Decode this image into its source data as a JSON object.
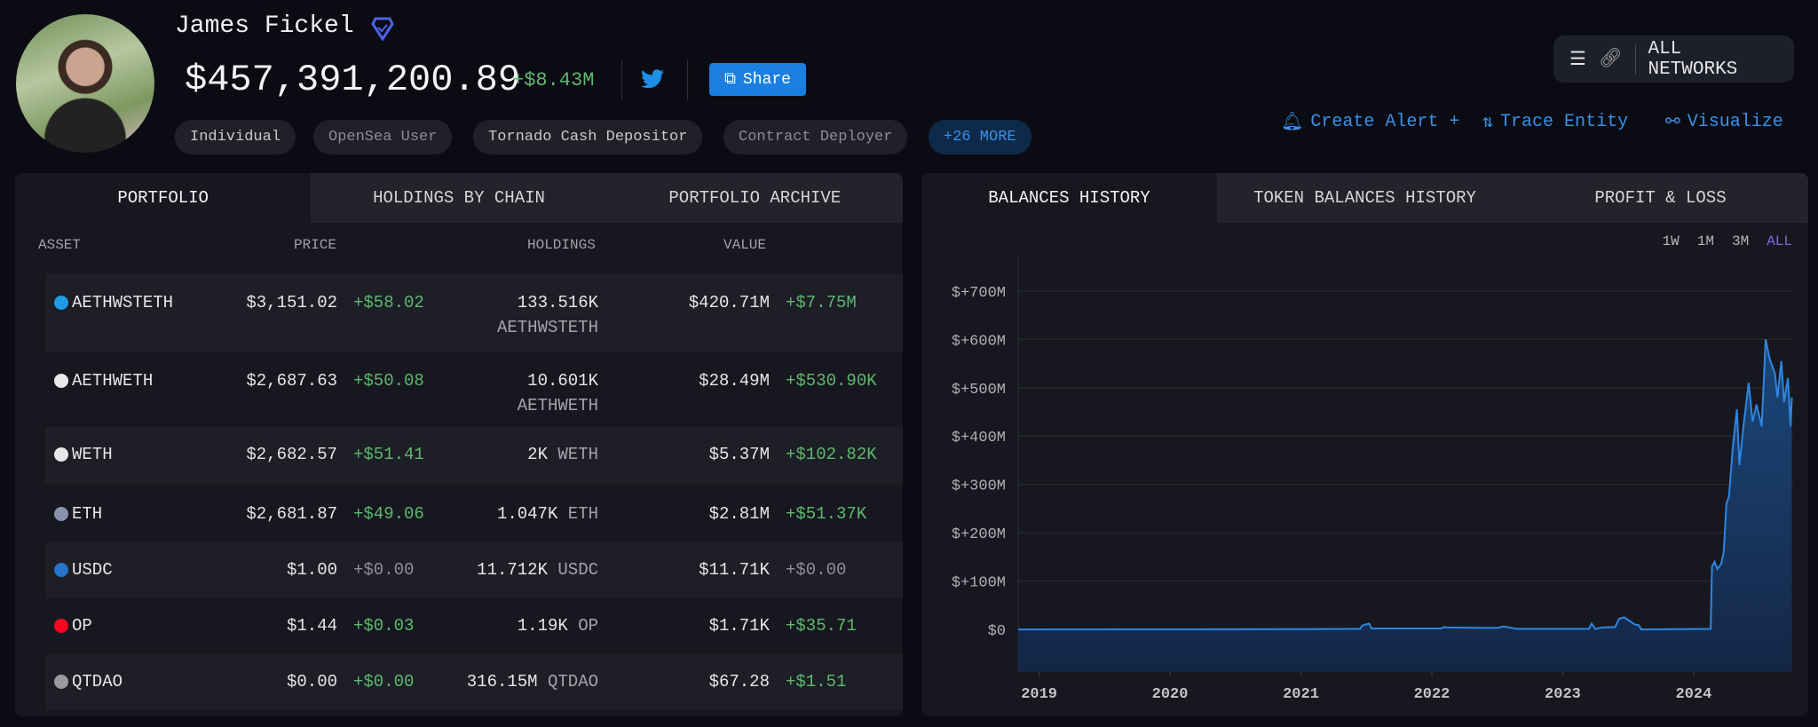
{
  "profile": {
    "name": "James Fickel",
    "net_worth": "$457,391,200.89",
    "change": "+$8.43M",
    "share_label": "Share",
    "tags": [
      "Individual",
      "OpenSea User",
      "Tornado Cash Depositor",
      "Contract Deployer",
      "+26 MORE"
    ]
  },
  "networks": {
    "label": "ALL NETWORKS"
  },
  "actions": {
    "alert": "Create Alert +",
    "trace": "Trace Entity",
    "visualize": "Visualize"
  },
  "left_tabs": [
    "PORTFOLIO",
    "HOLDINGS BY CHAIN",
    "PORTFOLIO ARCHIVE"
  ],
  "table": {
    "headers": [
      "ASSET",
      "PRICE",
      "HOLDINGS",
      "VALUE"
    ],
    "rows": [
      {
        "asset": "AETHWSTETH",
        "price": "$3,151.02",
        "price_change": "+$58.02",
        "holdings": "133.516K",
        "holdings_unit": "AETHWSTETH",
        "value": "$420.71M",
        "value_change": "+$7.75M",
        "icon": "wsteth-icon",
        "color": "#1f9be6"
      },
      {
        "asset": "AETHWETH",
        "price": "$2,687.63",
        "price_change": "+$50.08",
        "holdings": "10.601K",
        "holdings_unit": "AETHWETH",
        "value": "$28.49M",
        "value_change": "+$530.90K",
        "icon": "aave-weth-icon",
        "color": "#e8e8ea"
      },
      {
        "asset": "WETH",
        "price": "$2,682.57",
        "price_change": "+$51.41",
        "holdings": "2K",
        "holdings_unit": "WETH",
        "value": "$5.37M",
        "value_change": "+$102.82K",
        "icon": "weth-icon",
        "color": "#e8e8ea"
      },
      {
        "asset": "ETH",
        "price": "$2,681.87",
        "price_change": "+$49.06",
        "holdings": "1.047K",
        "holdings_unit": "ETH",
        "value": "$2.81M",
        "value_change": "+$51.37K",
        "icon": "eth-icon",
        "color": "#8a92b2"
      },
      {
        "asset": "USDC",
        "price": "$1.00",
        "price_change": "+$0.00",
        "holdings": "11.712K",
        "holdings_unit": "USDC",
        "value": "$11.71K",
        "value_change": "+$0.00",
        "icon": "usdc-icon",
        "color": "#2775ca"
      },
      {
        "asset": "OP",
        "price": "$1.44",
        "price_change": "+$0.03",
        "holdings": "1.19K",
        "holdings_unit": "OP",
        "value": "$1.71K",
        "value_change": "+$35.71",
        "icon": "op-icon",
        "color": "#ff0420"
      },
      {
        "asset": "QTDAO",
        "price": "$0.00",
        "price_change": "+$0.00",
        "holdings": "316.15M",
        "holdings_unit": "QTDAO",
        "value": "$67.28",
        "value_change": "+$1.51",
        "icon": "qtdao-icon",
        "color": "#9a9aa0"
      }
    ]
  },
  "right_tabs": [
    "BALANCES HISTORY",
    "TOKEN BALANCES HISTORY",
    "PROFIT & LOSS"
  ],
  "ranges": [
    "1W",
    "1M",
    "3M",
    "ALL"
  ],
  "colors": {
    "accent": "#3c8fe6",
    "positive": "#5fb870",
    "line": "#2f86e0"
  },
  "chart_data": {
    "type": "area",
    "title": "Balances History",
    "xlabel": "",
    "ylabel": "",
    "x_ticks": [
      2019,
      2020,
      2021,
      2022,
      2023,
      2024
    ],
    "x_tick_labels": [
      "2019",
      "2020",
      "2021",
      "2022",
      "2023",
      "2024"
    ],
    "y_ticks": [
      0,
      100,
      200,
      300,
      400,
      500,
      600,
      700
    ],
    "y_tick_labels": [
      "$0",
      "$+100M",
      "$+200M",
      "$+300M",
      "$+400M",
      "$+500M",
      "$+600M",
      "$+700M"
    ],
    "xlim": [
      2018.84,
      2024.76
    ],
    "ylim": [
      -88,
      775
    ],
    "grid": true,
    "series": [
      {
        "name": "Balance ($M)",
        "x": [
          2018.84,
          2021.0,
          2021.45,
          2021.47,
          2021.52,
          2021.54,
          2022.07,
          2022.09,
          2022.12,
          2022.5,
          2022.55,
          2022.65,
          2023.1,
          2023.2,
          2023.22,
          2023.25,
          2023.3,
          2023.4,
          2023.43,
          2023.47,
          2023.55,
          2023.58,
          2023.6,
          2024.13,
          2024.14,
          2024.16,
          2024.18,
          2024.21,
          2024.23,
          2024.25,
          2024.27,
          2024.3,
          2024.33,
          2024.35,
          2024.38,
          2024.42,
          2024.45,
          2024.48,
          2024.52,
          2024.55,
          2024.58,
          2024.62,
          2024.64,
          2024.67,
          2024.69,
          2024.72,
          2024.74,
          2024.75
        ],
        "y": [
          0,
          0.5,
          1,
          8,
          12,
          2,
          2,
          5,
          4,
          3,
          6,
          1,
          1,
          1,
          12,
          1,
          4,
          5,
          22,
          25,
          10,
          9,
          0,
          1,
          130,
          140,
          125,
          135,
          160,
          260,
          275,
          380,
          455,
          340,
          420,
          510,
          430,
          465,
          420,
          600,
          560,
          530,
          480,
          555,
          470,
          520,
          420,
          480
        ]
      }
    ]
  }
}
